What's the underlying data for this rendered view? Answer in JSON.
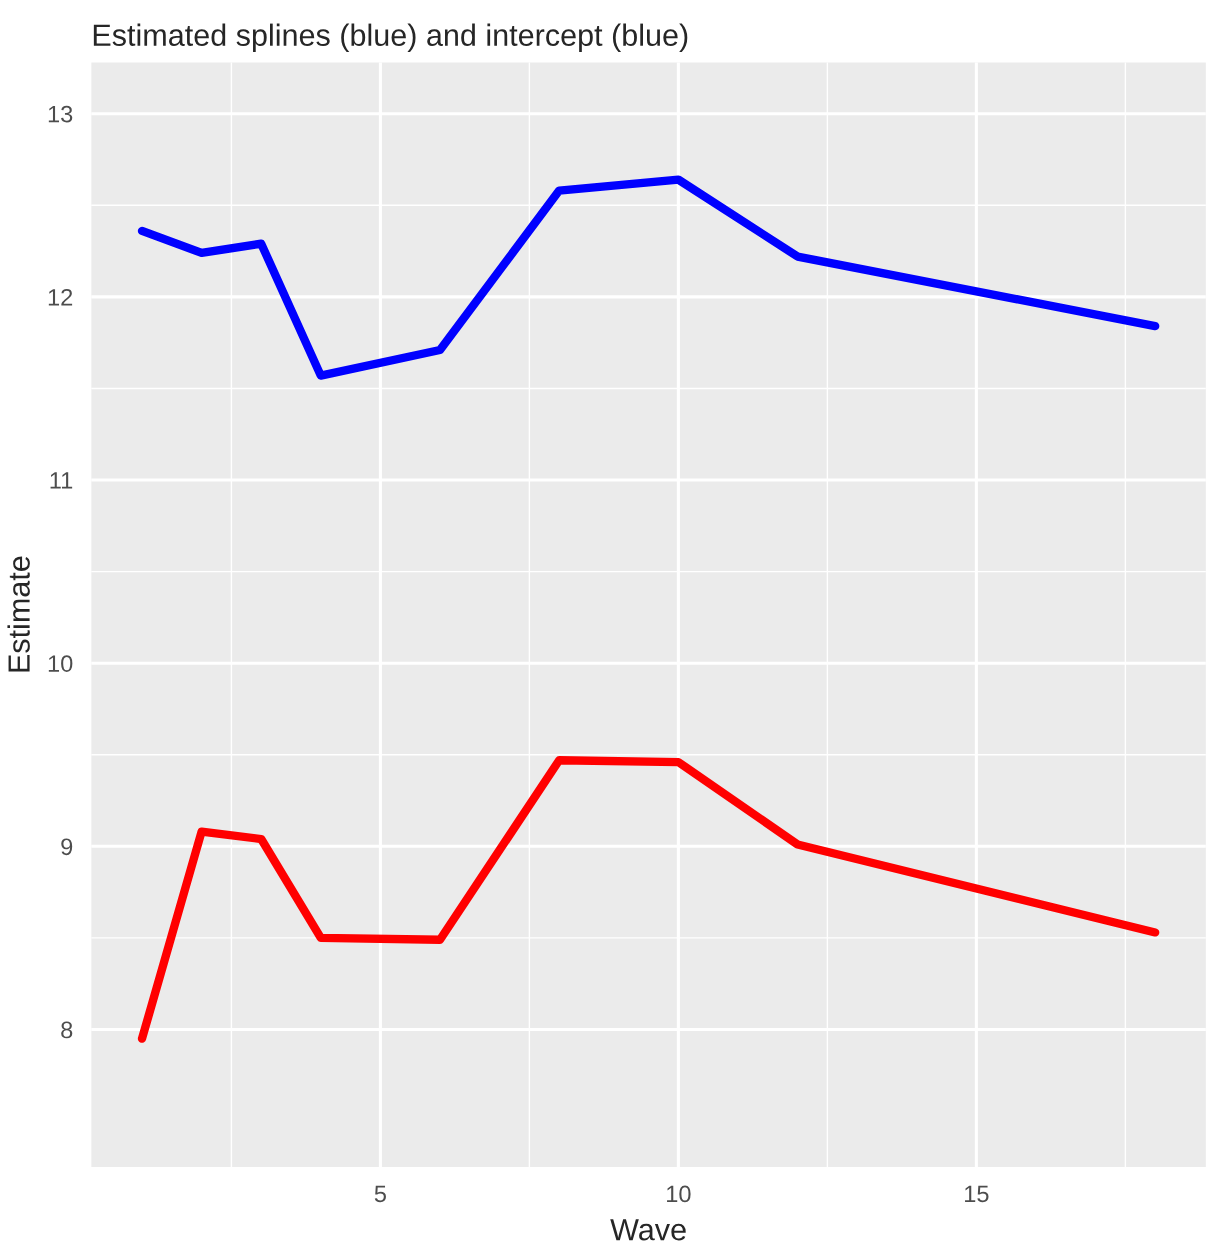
{
  "chart_data": {
    "type": "line",
    "title": "Estimated splines (blue) and intercept (blue)",
    "xlabel": "Wave",
    "ylabel": "Estimate",
    "x": [
      1,
      2,
      3,
      4,
      6,
      8,
      10,
      12,
      18
    ],
    "series": [
      {
        "color": "#0000ff",
        "values": [
          12.36,
          12.24,
          12.29,
          11.57,
          11.71,
          12.58,
          12.64,
          12.22,
          11.84
        ]
      },
      {
        "color": "#ff0000",
        "values": [
          7.95,
          9.08,
          9.04,
          8.5,
          8.49,
          9.47,
          9.46,
          9.01,
          8.53
        ]
      }
    ],
    "xlim": [
      0.15,
      18.85
    ],
    "ylim": [
      7.25,
      13.28
    ],
    "xticks": [
      5,
      10,
      15
    ],
    "yticks": [
      8,
      9,
      10,
      11,
      12,
      13
    ],
    "grid": true,
    "line_style": "solid",
    "marker": "none",
    "legend": false
  }
}
